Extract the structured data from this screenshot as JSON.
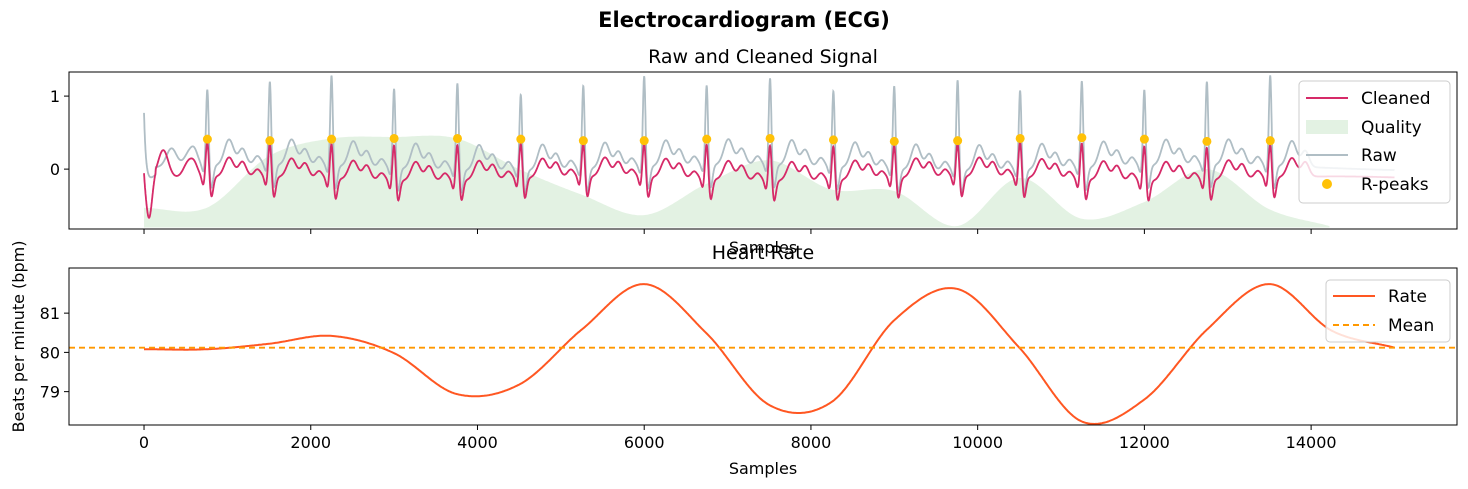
{
  "suptitle": "Electrocardiogram (ECG)",
  "colors": {
    "cleaned": "#d62a68",
    "raw": "#b0bec5",
    "quality": "#e3f2e3",
    "rpeaks": "#ffc107",
    "rate": "#ff5722",
    "mean": "#ff9800"
  },
  "chart_data": [
    {
      "type": "line",
      "title": "Raw and Cleaned Signal",
      "xlabel": "Samples",
      "ylabel": "",
      "xlim": [
        -900,
        15750
      ],
      "ylim": [
        -0.82,
        1.33
      ],
      "yticks": [
        0,
        1
      ],
      "ytick_labels": [
        "0",
        "1"
      ],
      "xticks": [
        0,
        2000,
        4000,
        6000,
        8000,
        10000,
        12000,
        14000
      ],
      "legend": {
        "placement": "top-right",
        "entries": [
          "Cleaned",
          "Quality",
          "Raw",
          "R-peaks"
        ]
      },
      "series": [
        {
          "name": "Cleaned",
          "kind": "line",
          "description": "filtered ECG waveform"
        },
        {
          "name": "Raw",
          "kind": "line",
          "description": "raw ECG waveform"
        },
        {
          "name": "Quality",
          "kind": "area",
          "x": [
            0,
            750,
            1500,
            2250,
            3000,
            3750,
            4500,
            5250,
            6000,
            6750,
            7500,
            8250,
            9000,
            9750,
            10500,
            11250,
            12000,
            12750,
            13500,
            14220
          ],
          "y": [
            -0.53,
            -0.53,
            0.18,
            0.42,
            0.44,
            0.42,
            0.0,
            -0.35,
            -0.63,
            -0.2,
            0.12,
            -0.28,
            -0.3,
            -0.78,
            -0.12,
            -0.68,
            -0.45,
            0.0,
            -0.55,
            -0.78
          ],
          "baseline": -0.8
        },
        {
          "name": "R-peaks",
          "kind": "scatter",
          "x": [
            760,
            1510,
            2250,
            3000,
            3760,
            4520,
            5270,
            6000,
            6750,
            7510,
            8270,
            9000,
            9760,
            10510,
            11250,
            12000,
            12750,
            13510
          ],
          "y": [
            0.41,
            0.39,
            0.41,
            0.42,
            0.42,
            0.41,
            0.39,
            0.39,
            0.41,
            0.42,
            0.4,
            0.38,
            0.39,
            0.42,
            0.43,
            0.41,
            0.38,
            0.39
          ]
        }
      ]
    },
    {
      "type": "line",
      "title": "Heart Rate",
      "xlabel": "Samples",
      "ylabel": "Beats per minute (bpm)",
      "xlim": [
        -900,
        15750
      ],
      "ylim": [
        78.15,
        82.15
      ],
      "yticks": [
        79,
        80,
        81
      ],
      "xticks": [
        0,
        2000,
        4000,
        6000,
        8000,
        10000,
        12000,
        14000
      ],
      "legend": {
        "placement": "top-right",
        "entries": [
          "Rate",
          "Mean"
        ]
      },
      "series": [
        {
          "name": "Rate",
          "x": [
            0,
            750,
            1500,
            2250,
            3000,
            3750,
            4500,
            5250,
            6000,
            6750,
            7500,
            8250,
            9000,
            9750,
            10500,
            11250,
            12000,
            12750,
            13500,
            14250,
            15000
          ],
          "y": [
            80.08,
            80.08,
            80.22,
            80.42,
            79.98,
            78.94,
            79.18,
            80.58,
            81.74,
            80.48,
            78.66,
            78.74,
            80.82,
            81.62,
            80.12,
            78.24,
            78.8,
            80.58,
            81.74,
            80.55,
            80.12
          ]
        },
        {
          "name": "Mean",
          "kind": "hline",
          "y": 80.12
        }
      ]
    }
  ]
}
